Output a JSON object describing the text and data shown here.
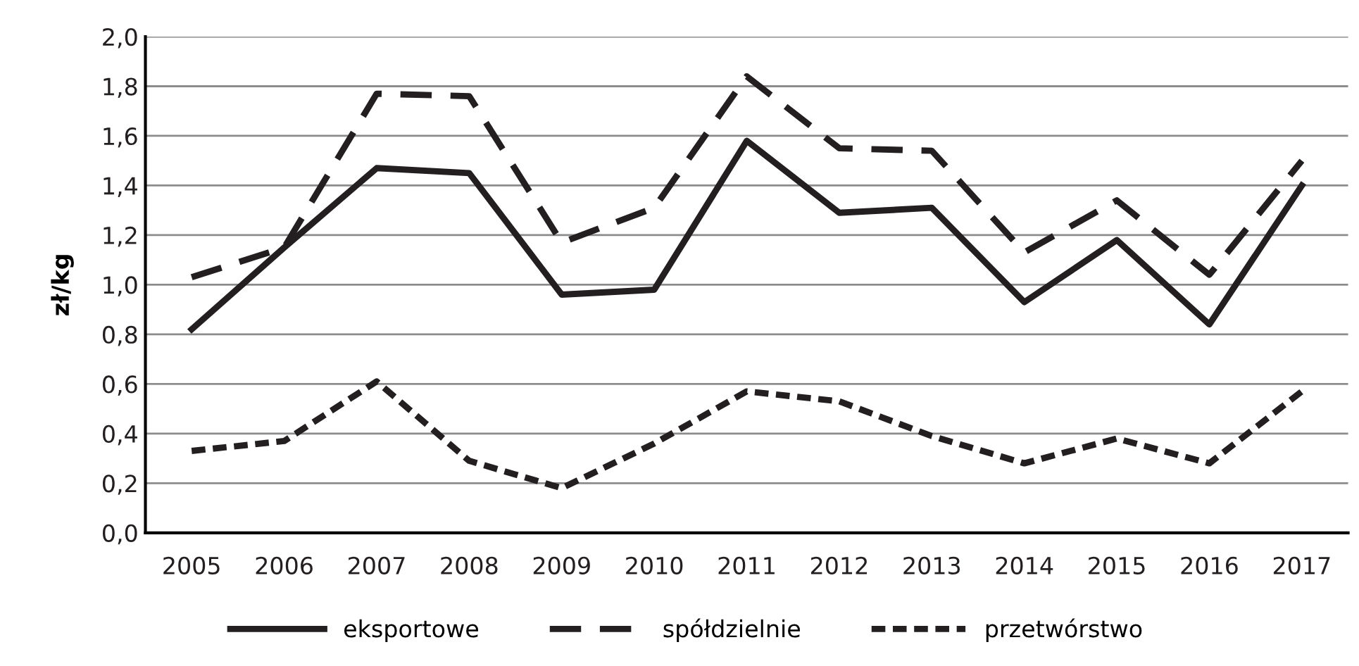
{
  "chart_data": {
    "type": "line",
    "ylabel": "zł/kg",
    "categories": [
      "2005",
      "2006",
      "2007",
      "2008",
      "2009",
      "2010",
      "2011",
      "2012",
      "2013",
      "2014",
      "2015",
      "2016",
      "2017"
    ],
    "series": [
      {
        "name": "eksportowe",
        "color": "#231f20",
        "line_style": "solid",
        "values": [
          0.82,
          1.15,
          1.47,
          1.45,
          0.96,
          0.98,
          1.58,
          1.29,
          1.31,
          0.93,
          1.18,
          0.84,
          1.4
        ]
      },
      {
        "name": "spółdzielnie",
        "color": "#231f20",
        "line_style": "dashed",
        "values": [
          1.03,
          1.15,
          1.77,
          1.76,
          1.17,
          1.31,
          1.84,
          1.55,
          1.54,
          1.13,
          1.34,
          1.04,
          1.5
        ]
      },
      {
        "name": "przetwórstwo",
        "color": "#231f20",
        "line_style": "dotted",
        "values": [
          0.33,
          0.37,
          0.61,
          0.29,
          0.18,
          0.36,
          0.57,
          0.53,
          0.39,
          0.28,
          0.38,
          0.28,
          0.57
        ]
      }
    ],
    "ylim": [
      0,
      2.0
    ],
    "yticks": [
      {
        "value": 0,
        "label": "0,0"
      },
      {
        "value": 0.2,
        "label": "0,2"
      },
      {
        "value": 0.4,
        "label": "0,4"
      },
      {
        "value": 0.6,
        "label": "0,6"
      },
      {
        "value": 0.8,
        "label": "0,8"
      },
      {
        "value": 1.0,
        "label": "1,0"
      },
      {
        "value": 1.2,
        "label": "1,2"
      },
      {
        "value": 1.4,
        "label": "1,4"
      },
      {
        "value": 1.6,
        "label": "1,6"
      },
      {
        "value": 1.8,
        "label": "1,8"
      },
      {
        "value": 2.0,
        "label": "2,0"
      }
    ],
    "grid": "y",
    "legend": "bottom",
    "marker": "none"
  }
}
